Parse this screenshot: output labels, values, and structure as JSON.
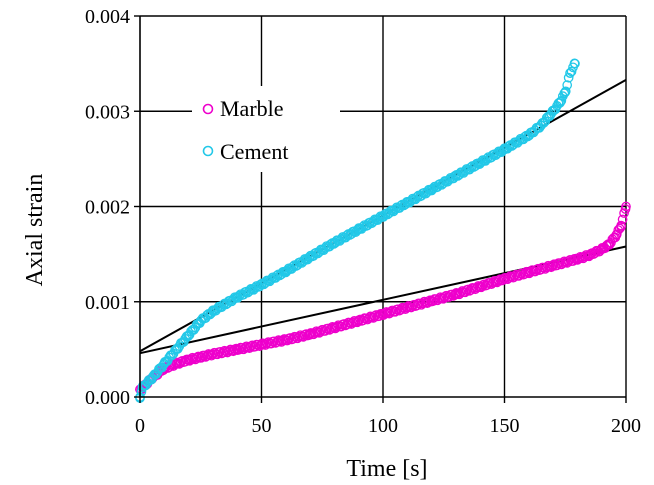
{
  "chart_data": {
    "type": "scatter",
    "title": "",
    "xlabel": "Time [s]",
    "ylabel": "Axial strain",
    "xlim": [
      0,
      200
    ],
    "ylim": [
      0,
      0.004
    ],
    "grid": true,
    "legend_placement": "top-left",
    "x_ticks": [
      "0",
      "50",
      "100",
      "150",
      "200"
    ],
    "y_ticks": [
      "0.000",
      "0.001",
      "0.002",
      "0.003",
      "0.004"
    ],
    "x_tick_values": [
      0,
      50,
      100,
      150,
      200
    ],
    "y_tick_values": [
      0,
      0.001,
      0.002,
      0.003,
      0.004
    ],
    "series": [
      {
        "name": "Marble",
        "color": "#ee00cc",
        "marker": "open-circle",
        "x": [
          0,
          2,
          5,
          10,
          15,
          20,
          25,
          30,
          40,
          50,
          60,
          70,
          80,
          90,
          100,
          110,
          120,
          130,
          140,
          150,
          160,
          170,
          180,
          185,
          190,
          193,
          196,
          198,
          200
        ],
        "y": [
          8e-05,
          0.00012,
          0.0002,
          0.0003,
          0.00035,
          0.00039,
          0.00042,
          0.00045,
          0.0005,
          0.00055,
          0.0006,
          0.00066,
          0.00073,
          0.0008,
          0.00087,
          0.00094,
          0.00101,
          0.00108,
          0.00116,
          0.00124,
          0.00131,
          0.00138,
          0.00145,
          0.00149,
          0.00155,
          0.0016,
          0.0017,
          0.0018,
          0.002
        ]
      },
      {
        "name": "Cement",
        "color": "#22c8e8",
        "marker": "open-circle",
        "x": [
          0,
          1,
          3,
          5,
          10,
          15,
          20,
          25,
          30,
          40,
          50,
          60,
          70,
          80,
          90,
          100,
          110,
          120,
          130,
          140,
          150,
          160,
          165,
          170,
          173,
          175,
          177,
          179
        ],
        "y": [
          0.0,
          0.0001,
          0.00015,
          0.0002,
          0.00035,
          0.0005,
          0.00065,
          0.0008,
          0.0009,
          0.00105,
          0.00118,
          0.00132,
          0.00147,
          0.00162,
          0.00176,
          0.0019,
          0.00204,
          0.00218,
          0.00232,
          0.00246,
          0.0026,
          0.00275,
          0.00285,
          0.003,
          0.0031,
          0.0032,
          0.0034,
          0.0035
        ]
      }
    ],
    "trend_lines": [
      {
        "x": [
          0,
          200
        ],
        "y": [
          0.00046,
          0.00158
        ],
        "color": "#000000"
      },
      {
        "x": [
          0,
          200
        ],
        "y": [
          0.00048,
          0.00333
        ],
        "color": "#000000"
      }
    ]
  }
}
